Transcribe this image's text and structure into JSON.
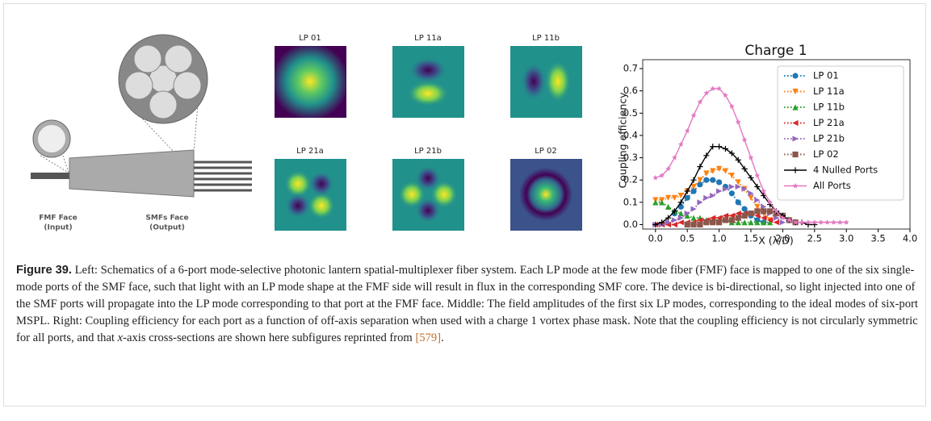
{
  "schematic": {
    "fmf_label": "FMF Face",
    "fmf_sub": "(Input)",
    "smf_label": "SMFs Face",
    "smf_sub": "(Output)"
  },
  "modes": {
    "labels": [
      "LP 01",
      "LP 11a",
      "LP 11b",
      "LP 21a",
      "LP 21b",
      "LP 02"
    ]
  },
  "chart_data": {
    "type": "line",
    "title": "Charge 1",
    "xlabel": "X (λ/D)",
    "ylabel": "Coupling efficiency",
    "x": [
      0,
      0.1,
      0.2,
      0.3,
      0.4,
      0.5,
      0.6,
      0.7,
      0.8,
      0.9,
      1.0,
      1.1,
      1.2,
      1.3,
      1.4,
      1.5,
      1.6,
      1.7,
      1.8,
      1.9,
      2.0,
      2.1,
      2.2,
      2.3,
      2.4,
      2.5,
      2.6,
      2.7,
      2.8,
      2.9,
      3.0
    ],
    "xlim": [
      -0.2,
      4.0
    ],
    "ylim": [
      -0.02,
      0.74
    ],
    "xticks": [
      {
        "value": 0,
        "label": "0.0"
      },
      0.5,
      {
        "value": 1,
        "label": "1.0"
      },
      1.5,
      {
        "value": 2,
        "label": "2.0"
      },
      2.5,
      {
        "value": 3,
        "label": "3.0"
      },
      3.5,
      {
        "value": 4,
        "label": "4.0"
      }
    ],
    "yticks": [
      {
        "value": 0,
        "label": "0.0"
      },
      0.1,
      0.2,
      0.3,
      0.4,
      0.5,
      0.6,
      0.7
    ],
    "legend": "upper right",
    "series": [
      {
        "name": "LP 01",
        "color": "#1f77b4",
        "marker": "circle",
        "dash": "dotted",
        "values": [
          null,
          null,
          null,
          0.05,
          0.08,
          0.12,
          0.15,
          0.18,
          0.2,
          0.2,
          0.19,
          0.17,
          0.14,
          0.1,
          0.07,
          0.04,
          0.02,
          0.01,
          null,
          null,
          null,
          null,
          null,
          null,
          null,
          null,
          null,
          null,
          null,
          null,
          null
        ]
      },
      {
        "name": "LP 11a",
        "color": "#ff7f0e",
        "marker": "tri-down",
        "dash": "dotted",
        "values": [
          0.11,
          0.11,
          0.12,
          0.12,
          0.13,
          0.15,
          0.17,
          0.2,
          0.23,
          0.24,
          0.25,
          0.24,
          0.22,
          0.19,
          0.16,
          0.12,
          0.08,
          0.05,
          0.02,
          null,
          null,
          null,
          null,
          null,
          null,
          null,
          null,
          null,
          null,
          null,
          null
        ]
      },
      {
        "name": "LP 11b",
        "color": "#2ca02c",
        "marker": "tri-up",
        "dash": "dotted",
        "values": [
          0.1,
          0.1,
          0.08,
          0.06,
          0.05,
          0.04,
          0.03,
          0.03,
          0.02,
          0.02,
          0.02,
          0.02,
          0.01,
          0.01,
          0.01,
          0.01,
          0.01,
          0.01,
          0.01,
          null,
          null,
          null,
          null,
          null,
          null,
          null,
          null,
          null,
          null,
          null,
          null
        ]
      },
      {
        "name": "LP 21a",
        "color": "#d62728",
        "marker": "tri-left",
        "dash": "dotted",
        "values": [
          0,
          0,
          0,
          0,
          0.01,
          0.01,
          0.01,
          0.02,
          0.02,
          0.03,
          0.03,
          0.04,
          0.04,
          0.05,
          0.05,
          0.05,
          0.04,
          0.03,
          0.02,
          0.01,
          null,
          null,
          null,
          null,
          null,
          null,
          null,
          null,
          null,
          null,
          null
        ]
      },
      {
        "name": "LP 21b",
        "color": "#9467bd",
        "marker": "tri-right",
        "dash": "dotted",
        "values": [
          0,
          0,
          0.01,
          0.02,
          0.03,
          0.05,
          0.07,
          0.1,
          0.12,
          0.13,
          0.15,
          0.16,
          0.17,
          0.17,
          0.16,
          0.14,
          0.11,
          0.08,
          0.05,
          0.03,
          0.01,
          null,
          null,
          null,
          null,
          null,
          null,
          null,
          null,
          null,
          null
        ]
      },
      {
        "name": "LP 02",
        "color": "#8c564b",
        "marker": "square",
        "dash": "dotted",
        "values": [
          null,
          null,
          null,
          null,
          null,
          0,
          0,
          0,
          0.01,
          0.01,
          0.01,
          0.02,
          0.02,
          0.03,
          0.04,
          0.05,
          0.06,
          0.06,
          0.06,
          0.05,
          0.04,
          0.02,
          0.01,
          null,
          null,
          null,
          null,
          null,
          null,
          null,
          null
        ]
      },
      {
        "name": "4 Nulled Ports",
        "color": "#000000",
        "marker": "plus",
        "dash": "solid",
        "values": [
          0,
          0.01,
          0.03,
          0.06,
          0.1,
          0.15,
          0.2,
          0.26,
          0.31,
          0.35,
          0.35,
          0.34,
          0.32,
          0.29,
          0.25,
          0.21,
          0.17,
          0.13,
          0.09,
          0.06,
          0.04,
          0.02,
          0.01,
          0.01,
          0,
          0,
          null,
          null,
          null,
          null,
          null
        ]
      },
      {
        "name": "All Ports",
        "color": "#e377c2",
        "marker": "star",
        "dash": "solid",
        "values": [
          0.21,
          0.22,
          0.25,
          0.3,
          0.36,
          0.42,
          0.49,
          0.55,
          0.59,
          0.61,
          0.61,
          0.58,
          0.53,
          0.46,
          0.38,
          0.3,
          0.22,
          0.15,
          0.1,
          0.06,
          0.03,
          0.02,
          0.01,
          0.01,
          0.01,
          0.01,
          0.01,
          0.01,
          0.01,
          0.01,
          0.01
        ]
      }
    ]
  },
  "caption": {
    "label": "Figure 39.",
    "text": " Left: Schematics of a 6-port mode-selective photonic lantern spatial-multiplexer fiber system. Each LP mode at the few mode fiber (FMF) face is mapped to one of the six single-mode ports of the SMF face, such that light with an LP mode shape at the FMF side will result in flux in the corresponding SMF core. The device is bi-directional, so light injected into one of the SMF ports will propagate into the LP mode corresponding to that port at the FMF face. Middle: The field amplitudes of the first six LP modes, corresponding to the ideal modes of six-port MSPL. Right: Coupling efficiency for each port as a function of off-axis separation when used with a charge 1 vortex phase mask. Note that the coupling efficiency is not circularly symmetric for all ports, and that ",
    "italic": "x",
    "text2": "-axis cross-sections are shown here subfigures reprinted from ",
    "ref": "[579]",
    "end": "."
  }
}
